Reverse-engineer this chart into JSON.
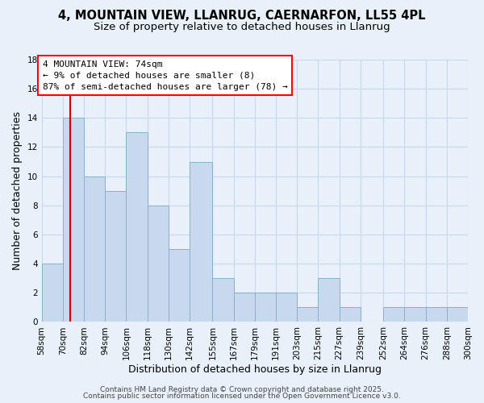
{
  "title": "4, MOUNTAIN VIEW, LLANRUG, CAERNARFON, LL55 4PL",
  "subtitle": "Size of property relative to detached houses in Llanrug",
  "xlabel": "Distribution of detached houses by size in Llanrug",
  "ylabel": "Number of detached properties",
  "bin_edges": [
    58,
    70,
    82,
    94,
    106,
    118,
    130,
    142,
    155,
    167,
    179,
    191,
    203,
    215,
    227,
    239,
    252,
    264,
    276,
    288,
    300
  ],
  "bar_heights": [
    4,
    14,
    10,
    9,
    13,
    8,
    5,
    11,
    3,
    2,
    2,
    2,
    1,
    3,
    1,
    0,
    1,
    1,
    1,
    1
  ],
  "bar_color": "#c8d8ed",
  "bar_edgecolor": "#8ab0cc",
  "grid_color": "#c5d8ec",
  "bg_color": "#e8f0fa",
  "red_line_x": 74,
  "red_line_color": "#cc0000",
  "annotation_text_line1": "4 MOUNTAIN VIEW: 74sqm",
  "annotation_text_line2": "← 9% of detached houses are smaller (8)",
  "annotation_text_line3": "87% of semi-detached houses are larger (78) →",
  "ylim": [
    0,
    18
  ],
  "yticks": [
    0,
    2,
    4,
    6,
    8,
    10,
    12,
    14,
    16,
    18
  ],
  "tick_labels": [
    "58sqm",
    "70sqm",
    "82sqm",
    "94sqm",
    "106sqm",
    "118sqm",
    "130sqm",
    "142sqm",
    "155sqm",
    "167sqm",
    "179sqm",
    "191sqm",
    "203sqm",
    "215sqm",
    "227sqm",
    "239sqm",
    "252sqm",
    "264sqm",
    "276sqm",
    "288sqm",
    "300sqm"
  ],
  "footer1": "Contains HM Land Registry data © Crown copyright and database right 2025.",
  "footer2": "Contains public sector information licensed under the Open Government Licence v3.0.",
  "title_fontsize": 10.5,
  "subtitle_fontsize": 9.5,
  "axis_label_fontsize": 9,
  "tick_fontsize": 7.5,
  "annotation_fontsize": 8,
  "footer_fontsize": 6.5
}
